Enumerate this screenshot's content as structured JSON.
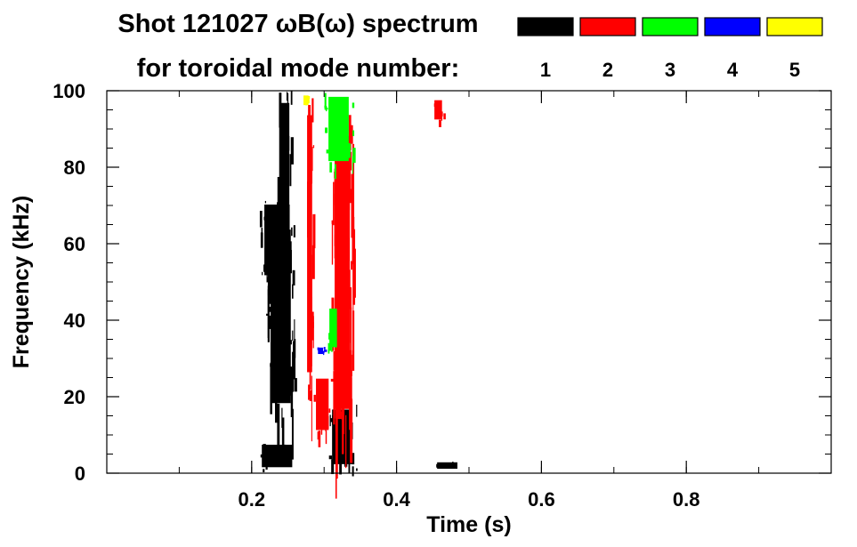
{
  "chart_data": {
    "type": "heatmap",
    "title": "Shot 121027 ωB(ω) spectrum",
    "subtitle": "for toroidal mode number:",
    "xlabel": "Time (s)",
    "ylabel": "Frequency (kHz)",
    "xlim": [
      0.0,
      1.0
    ],
    "ylim": [
      0,
      100
    ],
    "x_ticks": [
      0.2,
      0.4,
      0.6,
      0.8
    ],
    "x_tick_labels": [
      "0.2",
      "0.4",
      "0.6",
      "0.8"
    ],
    "y_ticks": [
      0,
      20,
      40,
      60,
      80,
      100
    ],
    "y_tick_labels": [
      "0",
      "20",
      "40",
      "60",
      "80",
      "100"
    ],
    "legend_placement": "top-right",
    "modes": [
      {
        "name": "1",
        "color": "#000000"
      },
      {
        "name": "2",
        "color": "#ff0000"
      },
      {
        "name": "3",
        "color": "#00ff00"
      },
      {
        "name": "4",
        "color": "#0000ff"
      },
      {
        "name": "5",
        "color": "#ffff00"
      }
    ],
    "regions": [
      {
        "mode": "1",
        "t": [
          0.205,
          0.265
        ],
        "f": [
          1,
          8
        ]
      },
      {
        "mode": "1",
        "t": [
          0.21,
          0.26
        ],
        "f": [
          50,
          72
        ]
      },
      {
        "mode": "1",
        "t": [
          0.22,
          0.26
        ],
        "f": [
          14,
          68
        ]
      },
      {
        "mode": "1",
        "t": [
          0.235,
          0.255
        ],
        "f": [
          60,
          100
        ]
      },
      {
        "mode": "1",
        "t": [
          0.305,
          0.345
        ],
        "f": [
          1,
          18
        ]
      },
      {
        "mode": "1",
        "t": [
          0.45,
          0.49
        ],
        "f": [
          1,
          3
        ]
      },
      {
        "mode": "2",
        "t": [
          0.285,
          0.31
        ],
        "f": [
          10,
          26
        ]
      },
      {
        "mode": "2",
        "t": [
          0.275,
          0.285
        ],
        "f": [
          20,
          100
        ]
      },
      {
        "mode": "2",
        "t": [
          0.31,
          0.34
        ],
        "f": [
          10,
          95
        ]
      },
      {
        "mode": "2",
        "t": [
          0.45,
          0.465
        ],
        "f": [
          92,
          98
        ]
      },
      {
        "mode": "3",
        "t": [
          0.305,
          0.32
        ],
        "f": [
          32,
          44
        ]
      },
      {
        "mode": "3",
        "t": [
          0.3,
          0.34
        ],
        "f": [
          80,
          100
        ]
      },
      {
        "mode": "4",
        "t": [
          0.29,
          0.3
        ],
        "f": [
          31,
          33
        ]
      },
      {
        "mode": "5",
        "t": [
          0.27,
          0.28
        ],
        "f": [
          96,
          99
        ]
      }
    ]
  }
}
